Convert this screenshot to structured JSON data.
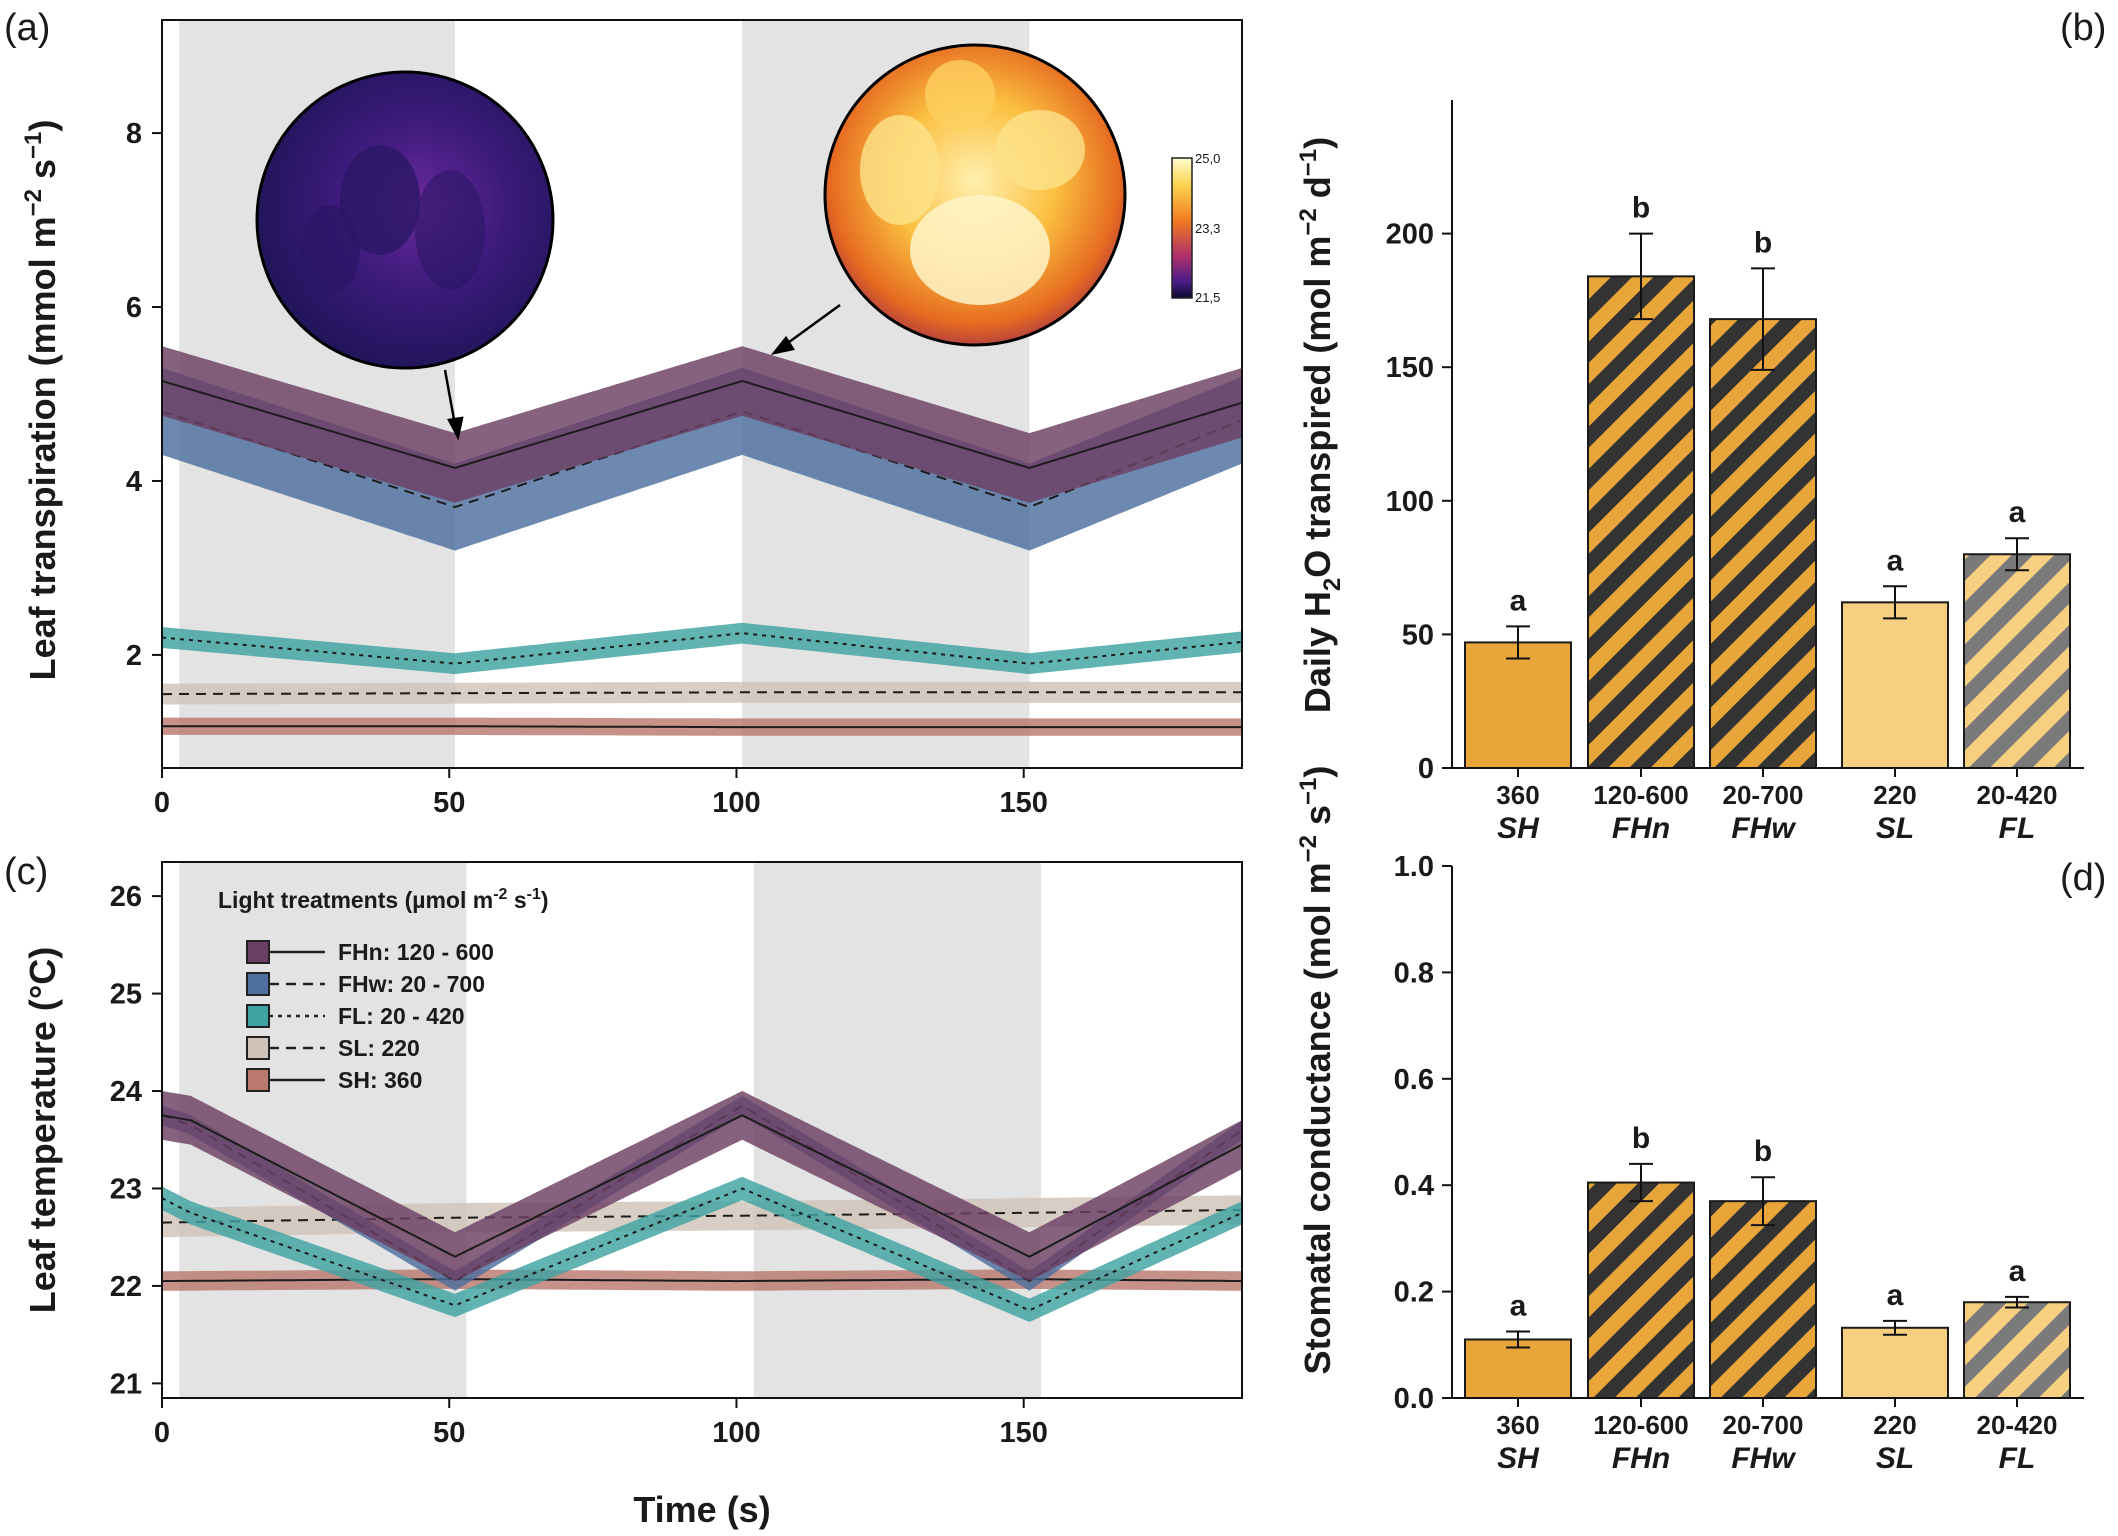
{
  "chart_data": [
    {
      "panel": "(a)",
      "type": "line",
      "ylabel_main": "Leaf transpiration (mmol m",
      "ylabel_sup1": "−2",
      "ylabel_mid": " s",
      "ylabel_sup2": "−1",
      "ylabel_end": ")",
      "xlim": [
        0,
        188
      ],
      "ylim": [
        0.7,
        9.3
      ],
      "xticks": [
        "0",
        "50",
        "100",
        "150"
      ],
      "yticks": [
        "2",
        "4",
        "6",
        "8"
      ],
      "shaded_x": [
        [
          3,
          51
        ],
        [
          101,
          151
        ]
      ],
      "series": [
        {
          "name": "FHn: 120 - 600",
          "line": "solid",
          "x": [
            0,
            51,
            101,
            151,
            188
          ],
          "y": [
            5.15,
            4.15,
            5.15,
            4.15,
            4.9
          ],
          "band": 0.4
        },
        {
          "name": "FHw: 20 - 700",
          "line": "dashed",
          "x": [
            0,
            51,
            101,
            151,
            188
          ],
          "y": [
            4.8,
            3.7,
            4.8,
            3.7,
            4.7
          ],
          "band": 0.5
        },
        {
          "name": "FL: 20 - 420",
          "line": "dotted",
          "x": [
            0,
            51,
            101,
            151,
            188
          ],
          "y": [
            2.2,
            1.9,
            2.25,
            1.9,
            2.15
          ],
          "band": 0.12
        },
        {
          "name": "SL: 220",
          "line": "dashed",
          "x": [
            0,
            51,
            101,
            151,
            188
          ],
          "y": [
            1.55,
            1.56,
            1.57,
            1.57,
            1.57
          ],
          "band": 0.12
        },
        {
          "name": "SH: 360",
          "line": "solid",
          "x": [
            0,
            51,
            101,
            151,
            188
          ],
          "y": [
            1.18,
            1.18,
            1.17,
            1.17,
            1.17
          ],
          "band": 0.1
        }
      ],
      "colorbar_ticks": [
        "25,0",
        "23,3",
        "21,5"
      ]
    },
    {
      "panel": "(b)",
      "type": "bar",
      "ylabel_a": "Daily H",
      "ylabel_sub": "2",
      "ylabel_b": "O transpired (mol m",
      "ylabel_sup1": "−2",
      "ylabel_c": " d",
      "ylabel_sup2": "−1",
      "ylabel_d": ")",
      "ylim": [
        0,
        250
      ],
      "yticks": [
        "0",
        "50",
        "100",
        "150",
        "200"
      ],
      "categories": [
        "360",
        "120-600",
        "20-700",
        "220",
        "20-420"
      ],
      "categories_treatment": [
        "SH",
        "FHn",
        "FHw",
        "SL",
        "FL"
      ],
      "values": [
        47,
        184,
        168,
        62,
        80
      ],
      "errors": [
        6,
        16,
        19,
        6,
        6
      ],
      "significance": [
        "a",
        "b",
        "b",
        "a",
        "a"
      ]
    },
    {
      "panel": "(c)",
      "type": "line",
      "ylabel": "Leaf temperature (°C)",
      "xlabel": "Time (s)",
      "xlim": [
        0,
        188
      ],
      "ylim": [
        20.85,
        26.35
      ],
      "xticks": [
        "0",
        "50",
        "100",
        "150"
      ],
      "yticks": [
        "21",
        "22",
        "23",
        "24",
        "25",
        "26"
      ],
      "shaded_x": [
        [
          3,
          53
        ],
        [
          103,
          153
        ]
      ],
      "legend_title_a": "Light treatments (µmol m",
      "legend_title_sup1": "-2",
      "legend_title_b": " s",
      "legend_title_sup2": "-1",
      "legend_title_c": ")",
      "series": [
        {
          "name": "FHn: 120 - 600",
          "line": "solid",
          "x": [
            0,
            5,
            51,
            101,
            151,
            188
          ],
          "y": [
            23.75,
            23.7,
            22.3,
            23.75,
            22.3,
            23.45
          ],
          "band": 0.25
        },
        {
          "name": "FHw: 20 - 700",
          "line": "dashed",
          "x": [
            0,
            5,
            51,
            101,
            151,
            188
          ],
          "y": [
            23.75,
            23.65,
            22.05,
            23.85,
            22.05,
            23.6
          ],
          "band": 0.1
        },
        {
          "name": "FL: 20 - 420",
          "line": "dotted",
          "x": [
            0,
            5,
            51,
            101,
            151,
            188
          ],
          "y": [
            22.9,
            22.75,
            21.8,
            23.0,
            21.75,
            22.75
          ],
          "band": 0.12
        },
        {
          "name": "SL: 220",
          "line": "dashed",
          "x": [
            0,
            50,
            100,
            150,
            188
          ],
          "y": [
            22.65,
            22.7,
            22.72,
            22.75,
            22.78
          ],
          "band": 0.15
        },
        {
          "name": "SH: 360",
          "line": "solid",
          "x": [
            0,
            50,
            100,
            150,
            188
          ],
          "y": [
            22.05,
            22.07,
            22.05,
            22.07,
            22.05
          ],
          "band": 0.1
        }
      ]
    },
    {
      "panel": "(d)",
      "type": "bar",
      "ylabel_main": "Stomatal conductance (mol m",
      "ylabel_sup1": "−2",
      "ylabel_mid": " s",
      "ylabel_sup2": "−1",
      "ylabel_end": ")",
      "ylim": [
        0,
        1.0
      ],
      "yticks": [
        "0.0",
        "0.2",
        "0.4",
        "0.6",
        "0.8",
        "1.0"
      ],
      "categories": [
        "360",
        "120-600",
        "20-700",
        "220",
        "20-420"
      ],
      "categories_treatment": [
        "SH",
        "FHn",
        "FHw",
        "SL",
        "FL"
      ],
      "values": [
        0.11,
        0.405,
        0.37,
        0.132,
        0.18
      ],
      "errors": [
        0.015,
        0.035,
        0.045,
        0.013,
        0.01
      ],
      "significance": [
        "a",
        "b",
        "b",
        "a",
        "a"
      ]
    }
  ],
  "colors": {
    "FHn": "#6b3f63",
    "FHw": "#4e6f9d",
    "FL": "#3fa3a1",
    "SL": "#cfc3b9",
    "SH": "#b9796f",
    "shade": "#e3e3e3",
    "bar_orange": "#e8a63a",
    "bar_dark": "#333333",
    "bar_light": "#f6d080",
    "bar_gray": "#777777"
  }
}
